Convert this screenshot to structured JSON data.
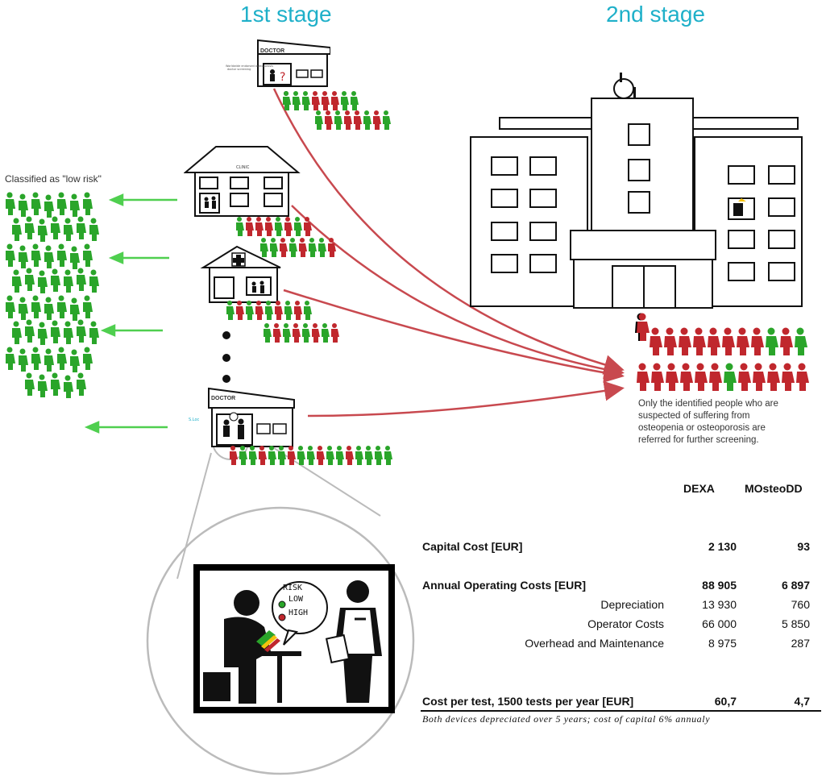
{
  "stages": {
    "first": "1st stage",
    "second": "2nd stage"
  },
  "low_risk_label": "Classified as \"low risk\"",
  "clinic_labels": {
    "doctor_top": "DOCTOR",
    "clinic": "CLINIC",
    "doctor_bottom": "DOCTOR"
  },
  "referral_note": "Only the identified people who are suspected of suffering from osteopenia or osteoporosis are referred for further screening.",
  "zoom": {
    "bubble_title": "RISK",
    "low": "LOW",
    "high": "HIGH"
  },
  "colors": {
    "accent": "#1fb0c9",
    "low": "#2aa52a",
    "high": "#c0272d",
    "arrow_red": "#c8494f",
    "arrow_green": "#4fcf4f"
  },
  "table": {
    "columns": [
      "DEXA",
      "MOsteoDD"
    ],
    "rows": [
      {
        "label": "Capital Cost [EUR]",
        "dexa": "2 130",
        "mosteodd": "93",
        "bold": true
      },
      {
        "label": "Annual Operating Costs [EUR]",
        "dexa": "88 905",
        "mosteodd": "6 897",
        "bold": true
      },
      {
        "label": "Depreciation",
        "dexa": "13 930",
        "mosteodd": "760",
        "bold": false
      },
      {
        "label": "Operator Costs",
        "dexa": "66 000",
        "mosteodd": "5 850",
        "bold": false
      },
      {
        "label": "Overhead and Maintenance",
        "dexa": "8 975",
        "mosteodd": "287",
        "bold": false
      },
      {
        "label": "Cost per test, 1500 tests per year [EUR]",
        "dexa": "60,7",
        "mosteodd": "4,7",
        "bold": true
      }
    ],
    "footnote": "Both devices depreciated over 5 years; cost of capital 6% annualy"
  }
}
